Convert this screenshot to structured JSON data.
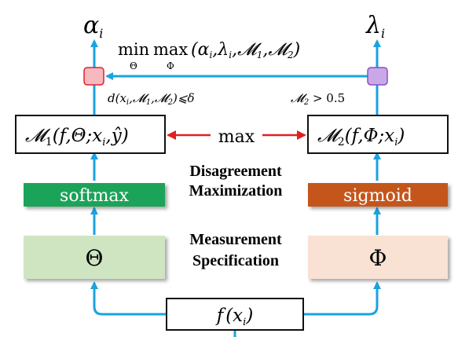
{
  "outputs": {
    "alpha": "α",
    "alpha_sub": "i",
    "lambda": "λ",
    "lambda_sub": "i"
  },
  "objective": {
    "min": "min",
    "min_sub": "Θ",
    "max": "max",
    "max_sub": "Φ",
    "args": "(α",
    "args_i1": "i",
    "args_mid": ",λ",
    "args_i2": "i",
    "args_rest": ",𝓜",
    "args_1": "1",
    "args_m2": ",𝓜",
    "args_2": "2",
    "args_close": ")"
  },
  "constraints": {
    "left_d": "d",
    "left_rest": "(x",
    "left_i": "i",
    "left_m1": ",𝓜",
    "left_1": "1",
    "left_m2": ",𝓜",
    "left_2": "2",
    "left_close": ")⩽δ",
    "right_m": "𝓜",
    "right_2": "2",
    "right_rest": " > 0.5"
  },
  "models": {
    "m1_prefix": "𝓜",
    "m1_sub": "1",
    "m1_args": "(f,Θ;x",
    "m1_xi": "i",
    "m1_end": ",ŷ)",
    "m2_prefix": "𝓜",
    "m2_sub": "2",
    "m2_args": "(f,Φ;x",
    "m2_xi": "i",
    "m2_end": ")",
    "max_label": "max"
  },
  "labels": {
    "disagreement_line1": "Disagreement",
    "disagreement_line2": "Maximization",
    "measurement_line1": "Measurement",
    "measurement_line2": "Specification"
  },
  "activations": {
    "softmax": "softmax",
    "sigmoid": "sigmoid"
  },
  "params": {
    "theta": "Θ",
    "phi": "Φ"
  },
  "input": {
    "f": "f",
    "paren": "(x",
    "sub": "i",
    "close": ")"
  },
  "colors": {
    "arrow_blue": "#1aa3e0",
    "arrow_red": "#e02020",
    "softmax_green": "#1aa35a",
    "sigmoid_orange": "#c4571a",
    "theta_box": "#cfe5c2",
    "phi_box": "#f9e2d4",
    "node_pink": "#f6b9bd",
    "node_purple": "#c9a8e8"
  }
}
